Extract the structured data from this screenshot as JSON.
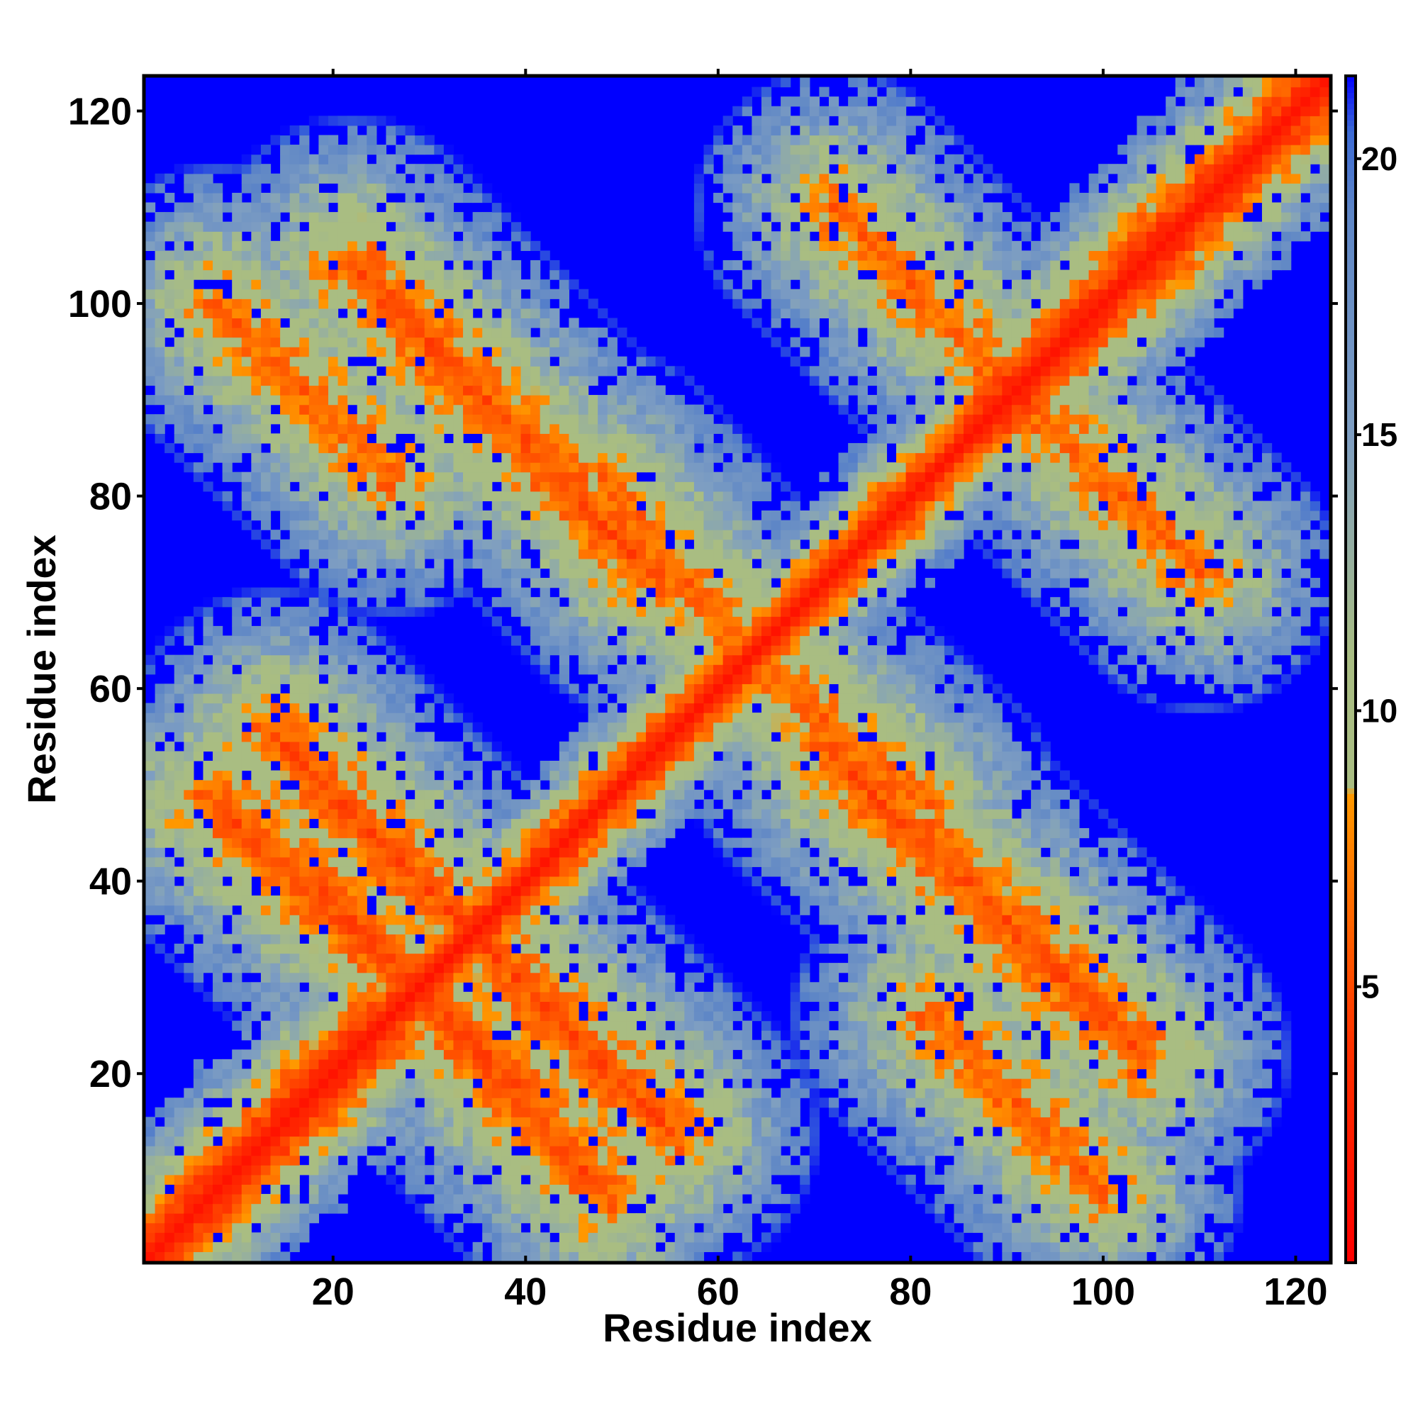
{
  "chart_data": {
    "type": "heatmap",
    "title": "",
    "xlabel": "Residue index",
    "ylabel": "Residue index",
    "n_residues": 123,
    "xlim": [
      0.5,
      123.5
    ],
    "ylim": [
      0.5,
      123.5
    ],
    "x_ticks": [
      20,
      40,
      60,
      80,
      100,
      120
    ],
    "y_ticks": [
      20,
      40,
      60,
      80,
      100,
      120
    ],
    "colorbar": {
      "ticks": [
        5,
        10,
        15,
        20
      ],
      "range": [
        0,
        21.5
      ],
      "stops": [
        {
          "value": 0,
          "color": "#ff0000"
        },
        {
          "value": 4,
          "color": "#ff3300"
        },
        {
          "value": 8.5,
          "color": "#ff9900"
        },
        {
          "value": 8.6,
          "color": "#a9bd82"
        },
        {
          "value": 11,
          "color": "#a9bd82"
        },
        {
          "value": 15,
          "color": "#7e9ec2"
        },
        {
          "value": 19,
          "color": "#5e86c6"
        },
        {
          "value": 20.5,
          "color": "#3c6ad4"
        },
        {
          "value": 21.5,
          "color": "#0000ff"
        }
      ]
    },
    "background_color": "#0000ff",
    "features": [
      {
        "kind": "diagonal",
        "from": 1,
        "to": 123,
        "core_value": 1.5
      },
      {
        "kind": "antidiagonal",
        "start": [
          18,
          40
        ],
        "end": [
          48,
          8
        ],
        "min_value": 5
      },
      {
        "kind": "antidiagonal",
        "start": [
          22,
          104
        ],
        "end": [
          53,
          72
        ],
        "min_value": 5
      },
      {
        "kind": "antidiagonal",
        "start": [
          72,
          110
        ],
        "end": [
          110,
          72
        ],
        "min_value": 6
      },
      {
        "kind": "antidiagonal",
        "start": [
          48,
          81
        ],
        "end": [
          75,
          51
        ],
        "min_value": 6
      },
      {
        "kind": "antidiagonal",
        "start": [
          25,
          44
        ],
        "end": [
          36,
          33
        ],
        "min_value": 5
      },
      {
        "kind": "antidiagonal",
        "start": [
          36,
          33
        ],
        "end": [
          55,
          14
        ],
        "min_value": 5
      },
      {
        "kind": "antidiagonal",
        "start": [
          82,
          26
        ],
        "end": [
          100,
          8
        ],
        "min_value": 6
      }
    ]
  }
}
